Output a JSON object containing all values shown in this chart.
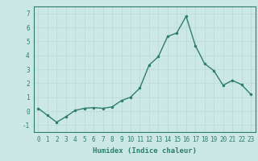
{
  "x": [
    0,
    1,
    2,
    3,
    4,
    5,
    6,
    7,
    8,
    9,
    10,
    11,
    12,
    13,
    14,
    15,
    16,
    17,
    18,
    19,
    20,
    21,
    22,
    23
  ],
  "y": [
    0.2,
    -0.3,
    -0.8,
    -0.4,
    0.05,
    0.2,
    0.25,
    0.2,
    0.3,
    0.75,
    1.0,
    1.65,
    3.3,
    3.9,
    5.35,
    5.6,
    6.8,
    4.7,
    3.4,
    2.9,
    1.85,
    2.2,
    1.9,
    1.2
  ],
  "line_color": "#2e7d6e",
  "marker": ".",
  "marker_size": 3,
  "bg_color": "#cce8e4",
  "grid_color": "#b8d8d4",
  "xlabel": "Humidex (Indice chaleur)",
  "xlabel_weight": "bold",
  "ylim": [
    -1.5,
    7.5
  ],
  "xlim": [
    -0.5,
    23.5
  ],
  "yticks": [
    -1,
    0,
    1,
    2,
    3,
    4,
    5,
    6,
    7
  ],
  "xticks": [
    0,
    1,
    2,
    3,
    4,
    5,
    6,
    7,
    8,
    9,
    10,
    11,
    12,
    13,
    14,
    15,
    16,
    17,
    18,
    19,
    20,
    21,
    22,
    23
  ],
  "tick_fontsize": 5.5,
  "label_fontsize": 6.5,
  "linewidth": 1.0,
  "axes_color": "#2e7d6e",
  "font_family": "monospace"
}
